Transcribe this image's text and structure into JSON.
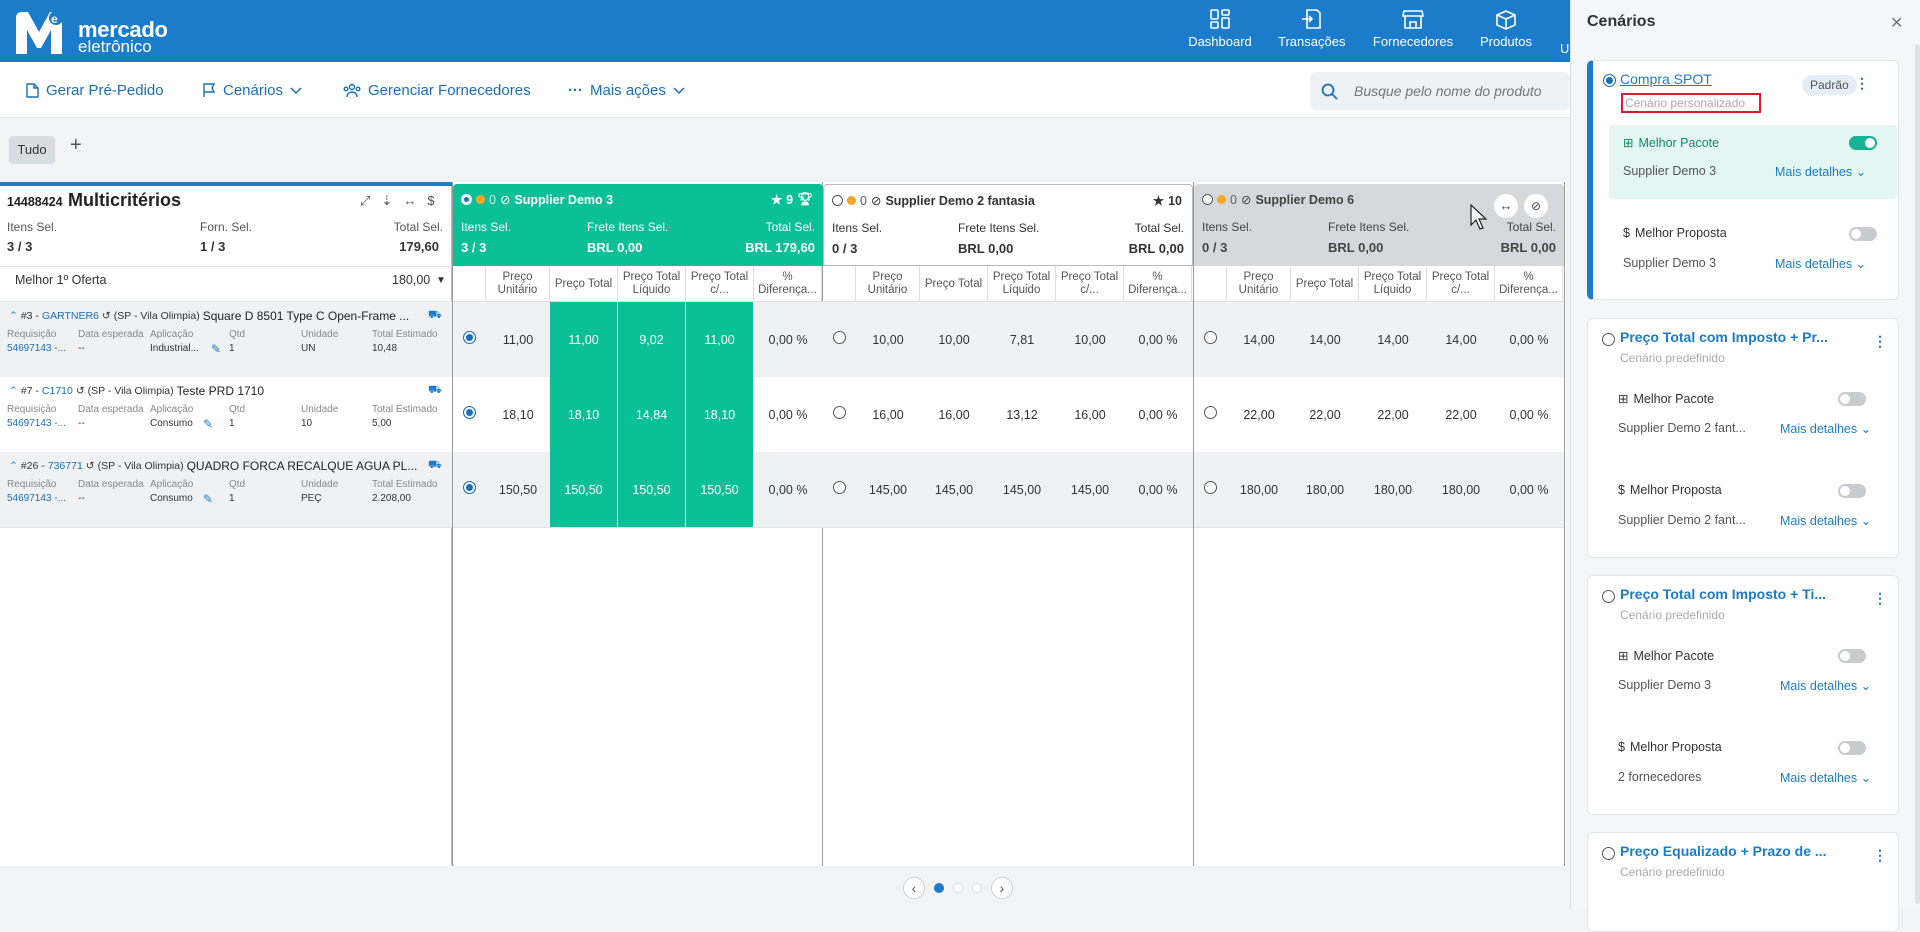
{
  "header": {
    "logo_line1": "mercado",
    "logo_line2": "eletrônico",
    "nav": [
      {
        "label": "Dashboard",
        "icon": "dashboard-icon"
      },
      {
        "label": "Transações",
        "icon": "transactions-icon"
      },
      {
        "label": "Fornecedores",
        "icon": "store-icon"
      },
      {
        "label": "Produtos",
        "icon": "box-icon"
      },
      {
        "label": "U",
        "icon": ""
      }
    ]
  },
  "actions": {
    "gerar": "Gerar Pré-Pedido",
    "cenarios": "Cenários",
    "gerenciar": "Gerenciar Fornecedores",
    "mais": "Mais ações",
    "search_placeholder": "Busque pelo nome do produto"
  },
  "tabs": {
    "all": "Tudo",
    "add": "+"
  },
  "left": {
    "id": "14488424",
    "title": "Multicritérios",
    "itens_label": "Itens Sel.",
    "itens_value": "3 / 3",
    "forn_label": "Forn. Sel.",
    "forn_value": "1 / 3",
    "total_label": "Total Sel.",
    "total_value": "179,60",
    "offer_label": "Melhor 1º Oferta",
    "offer_value": "180,00",
    "col_labels": {
      "req": "Requisição",
      "date": "Data esperada",
      "app": "Aplicação",
      "qty": "Qtd",
      "unit": "Unidade",
      "total": "Total Estimado"
    },
    "items": [
      {
        "num": "#3 -",
        "code": "GARTNER6",
        "loc": "(SP - Vila Olimpia)",
        "name": "Square D 8501 Type C Open-Frame ...",
        "req": "54697143 -...",
        "date": "--",
        "app": "Industrial...",
        "qty": "1",
        "unit": "UN",
        "total": "10,48"
      },
      {
        "num": "#7 -",
        "code": "C1710",
        "loc": "(SP - Vila Olimpia)",
        "name": "Teste PRD 1710",
        "req": "54697143 -...",
        "date": "--",
        "app": "Consumo",
        "qty": "1",
        "unit": "10",
        "total": "5,00"
      },
      {
        "num": "#26 -",
        "code": "736771",
        "loc": "(SP - Vila Olimpia)",
        "name": "QUADRO FORCA RECALQUE AGUA PL...",
        "req": "54697143 -...",
        "date": "--",
        "app": "Consumo",
        "qty": "1",
        "unit": "PEÇ",
        "total": "2.208,00"
      }
    ]
  },
  "suppliers": [
    {
      "count": "0",
      "name": "Supplier Demo 3",
      "rating": "9",
      "itens_label": "Itens Sel.",
      "itens": "3 / 3",
      "frete_label": "Frete Itens Sel.",
      "frete": "BRL 0,00",
      "total_label": "Total Sel.",
      "total": "BRL 179,60",
      "rows": [
        [
          "11,00",
          "11,00",
          "9,02",
          "11,00",
          "0,00 %"
        ],
        [
          "18,10",
          "18,10",
          "14,84",
          "18,10",
          "0,00 %"
        ],
        [
          "150,50",
          "150,50",
          "150,50",
          "150,50",
          "0,00 %"
        ]
      ]
    },
    {
      "count": "0",
      "name": "Supplier Demo 2 fantasia",
      "rating": "10",
      "itens_label": "Itens Sel.",
      "itens": "0 / 3",
      "frete_label": "Frete Itens Sel.",
      "frete": "BRL 0,00",
      "total_label": "Total Sel.",
      "total": "BRL 0,00",
      "rows": [
        [
          "10,00",
          "10,00",
          "7,81",
          "10,00",
          "0,00 %"
        ],
        [
          "16,00",
          "16,00",
          "13,12",
          "16,00",
          "0,00 %"
        ],
        [
          "145,00",
          "145,00",
          "145,00",
          "145,00",
          "0,00 %"
        ]
      ]
    },
    {
      "count": "0",
      "name": "Supplier Demo 6",
      "rating": "",
      "itens_label": "Itens Sel.",
      "itens": "0 / 3",
      "frete_label": "Frete Itens Sel.",
      "frete": "BRL 0,00",
      "total_label": "Total Sel.",
      "total": "BRL 0,00",
      "rows": [
        [
          "14,00",
          "14,00",
          "14,00",
          "14,00",
          "0,00 %"
        ],
        [
          "22,00",
          "22,00",
          "22,00",
          "22,00",
          "0,00 %"
        ],
        [
          "180,00",
          "180,00",
          "180,00",
          "180,00",
          "0,00 %"
        ]
      ]
    }
  ],
  "subheaders": [
    [
      "Preço",
      "Unitário"
    ],
    [
      "Preço Total",
      ""
    ],
    [
      "Preço Total",
      "Líquido"
    ],
    [
      "Preço Total",
      "c/..."
    ],
    [
      "%",
      "Diferença..."
    ]
  ],
  "panel": {
    "title": "Cenários",
    "badge": "Padrão",
    "pacote": "Melhor Pacote",
    "proposta": "Melhor Proposta",
    "more": "Mais detalhes",
    "cards": [
      {
        "title": "Compra SPOT",
        "subtitle": "Cenário personalizado",
        "pac_sup": "Supplier Demo 3",
        "prop_sup": "Supplier Demo 3"
      },
      {
        "title": "Preço Total com Imposto + Pr...",
        "subtitle": "Cenário predefinido",
        "pac_sup": "Supplier Demo 2 fant...",
        "prop_sup": "Supplier Demo 2 fant..."
      },
      {
        "title": "Preço Total com Imposto + Ti...",
        "subtitle": "Cenário predefinido",
        "pac_sup": "Supplier Demo 3",
        "prop_sup": "2 fornecedores"
      },
      {
        "title": "Preço Equalizado + Prazo de ...",
        "subtitle": "Cenário predefinido"
      }
    ]
  },
  "colors": {
    "brand": "#1b7ccb",
    "green": "#18b394",
    "selected_supplier": "#0bbf96"
  }
}
